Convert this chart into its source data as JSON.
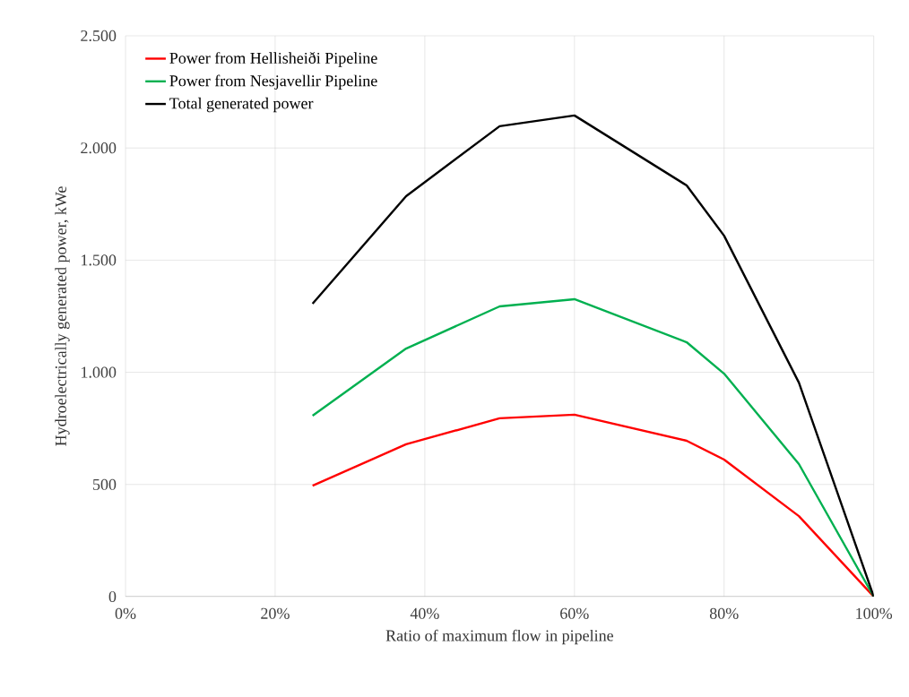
{
  "chart_data": {
    "type": "line",
    "xlabel": "Ratio of maximum flow in pipeline",
    "ylabel": "Hydroelectrically generated power, kWe",
    "xlim": [
      0,
      100
    ],
    "ylim": [
      0,
      2500
    ],
    "xticks": [
      {
        "value": 0,
        "label": "0%"
      },
      {
        "value": 20,
        "label": "20%"
      },
      {
        "value": 40,
        "label": "40%"
      },
      {
        "value": 60,
        "label": "60%"
      },
      {
        "value": 80,
        "label": "80%"
      },
      {
        "value": 100,
        "label": "100%"
      }
    ],
    "yticks": [
      {
        "value": 0,
        "label": "0"
      },
      {
        "value": 500,
        "label": "500"
      },
      {
        "value": 1000,
        "label": "1.000"
      },
      {
        "value": 1500,
        "label": "1.500"
      },
      {
        "value": 2000,
        "label": "2.000"
      },
      {
        "value": 2500,
        "label": "2.500"
      }
    ],
    "x": [
      25,
      37.5,
      50,
      60,
      75,
      80,
      90,
      100
    ],
    "series": [
      {
        "name": "Power from Hellisheiði Pipeline",
        "color": "#ff0000",
        "values": [
          495,
          679,
          795,
          811,
          695,
          611,
          359,
          0
        ]
      },
      {
        "name": "Power from Nesjavellir Pipeline",
        "color": "#00b050",
        "values": [
          807,
          1106,
          1294,
          1326,
          1134,
          994,
          591,
          0
        ]
      },
      {
        "name": "Total generated power",
        "color": "#000000",
        "values": [
          1306,
          1785,
          2097,
          2145,
          1833,
          1609,
          954,
          0
        ]
      }
    ],
    "grid": true,
    "legend": "top left",
    "marker": "none",
    "line_style": "solid"
  }
}
